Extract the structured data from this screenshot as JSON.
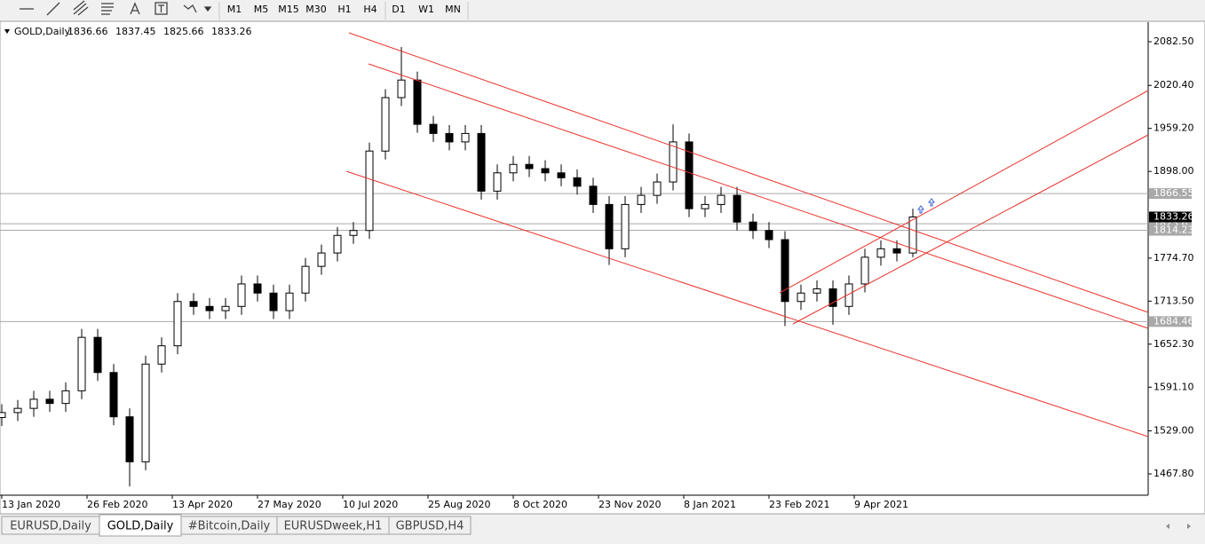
{
  "toolbar": {
    "timeframes": [
      "M1",
      "M5",
      "M15",
      "M30",
      "H1",
      "H4",
      "D1",
      "W1",
      "MN"
    ]
  },
  "chart_data": {
    "type": "candlestick",
    "symbol": "GOLD,Daily",
    "ohlc": [
      1836.66,
      1837.45,
      1825.66,
      1833.26
    ],
    "x": [
      0,
      6,
      12,
      18,
      24,
      30,
      36,
      42,
      48,
      54,
      60,
      66,
      72,
      78,
      84,
      90,
      96,
      102,
      108,
      114,
      120,
      126,
      132,
      138,
      144,
      150,
      156,
      162,
      168,
      174,
      180,
      186,
      192,
      198,
      204,
      210,
      216,
      222,
      228,
      234,
      240,
      246,
      252,
      258,
      264,
      270,
      276,
      282,
      288,
      294,
      300,
      306,
      312,
      318,
      324,
      330,
      336,
      342
    ],
    "open": [
      1548,
      1555,
      1561,
      1574,
      1568,
      1586,
      1662,
      1612,
      1549,
      1485,
      1624,
      1650,
      1713,
      1706,
      1700,
      1706,
      1738,
      1725,
      1700,
      1725,
      1763,
      1782,
      1807,
      1814,
      1927,
      2003,
      2028,
      1965,
      1952,
      1940,
      1952,
      1870,
      1896,
      1908,
      1902,
      1896,
      1889,
      1877,
      1851,
      1788,
      1851,
      1864,
      1883,
      1940,
      1845,
      1851,
      1864,
      1826,
      1814,
      1801,
      1713,
      1725,
      1731,
      1706,
      1738,
      1776,
      1788,
      1782
    ],
    "high": [
      1567,
      1573,
      1586,
      1586,
      1598,
      1674,
      1674,
      1624,
      1561,
      1636,
      1662,
      1725,
      1725,
      1718,
      1718,
      1750,
      1750,
      1737,
      1737,
      1775,
      1794,
      1819,
      1826,
      1939,
      2015,
      2075,
      2040,
      1977,
      1964,
      1964,
      1964,
      1908,
      1920,
      1920,
      1914,
      1908,
      1901,
      1889,
      1863,
      1863,
      1876,
      1895,
      1965,
      1952,
      1863,
      1876,
      1876,
      1838,
      1826,
      1813,
      1737,
      1743,
      1743,
      1750,
      1788,
      1800,
      1800,
      1845
    ],
    "low": [
      1536,
      1543,
      1549,
      1556,
      1556,
      1574,
      1600,
      1537,
      1450,
      1473,
      1612,
      1638,
      1694,
      1688,
      1688,
      1694,
      1713,
      1688,
      1688,
      1713,
      1751,
      1770,
      1795,
      1802,
      1915,
      1991,
      1953,
      1940,
      1928,
      1928,
      1858,
      1858,
      1884,
      1890,
      1884,
      1877,
      1865,
      1839,
      1765,
      1776,
      1839,
      1852,
      1871,
      1833,
      1833,
      1839,
      1814,
      1802,
      1789,
      1678,
      1701,
      1713,
      1680,
      1694,
      1726,
      1764,
      1770,
      1776
    ],
    "close": [
      1555,
      1561,
      1574,
      1568,
      1586,
      1662,
      1612,
      1549,
      1485,
      1624,
      1650,
      1713,
      1706,
      1700,
      1706,
      1738,
      1725,
      1700,
      1725,
      1763,
      1782,
      1807,
      1814,
      1927,
      2003,
      2028,
      1965,
      1952,
      1940,
      1952,
      1870,
      1896,
      1908,
      1902,
      1896,
      1889,
      1877,
      1851,
      1788,
      1851,
      1864,
      1883,
      1940,
      1845,
      1851,
      1864,
      1826,
      1814,
      1801,
      1713,
      1725,
      1731,
      1706,
      1738,
      1776,
      1788,
      1782,
      1833.26
    ],
    "xlim": [
      -0.67,
      430.33
    ],
    "xticks": [
      {
        "value": 0,
        "label": "13 Jan 2020"
      },
      {
        "value": 32,
        "label": "26 Feb 2020"
      },
      {
        "value": 64,
        "label": "13 Apr 2020"
      },
      {
        "value": 96,
        "label": "27 May 2020"
      },
      {
        "value": 128,
        "label": "10 Jul 2020"
      },
      {
        "value": 160,
        "label": "25 Aug 2020"
      },
      {
        "value": 192,
        "label": "8 Oct 2020"
      },
      {
        "value": 224,
        "label": "23 Nov 2020"
      },
      {
        "value": 256,
        "label": "8 Jan 2021"
      },
      {
        "value": 288,
        "label": "23 Feb 2021"
      },
      {
        "value": 320,
        "label": "9 Apr 2021"
      }
    ],
    "ylim": [
      1437.5,
      2110.3
    ],
    "yticks": [
      {
        "value": 2082.5,
        "label": "2082.50"
      },
      {
        "value": 2020.4,
        "label": "2020.40"
      },
      {
        "value": 1959.2,
        "label": "1959.20"
      },
      {
        "value": 1898,
        "label": "1898.00"
      },
      {
        "value": 1774.7,
        "label": "1774.70"
      },
      {
        "value": 1713.5,
        "label": "1713.50"
      },
      {
        "value": 1652.3,
        "label": "1652.30"
      },
      {
        "value": 1591.1,
        "label": "1591.10"
      },
      {
        "value": 1529,
        "label": "1529.00"
      },
      {
        "value": 1467.8,
        "label": "1467.80"
      }
    ],
    "levels": [
      1866.55,
      1823.65,
      1814.23,
      1684.46
    ],
    "bid": 1833.26
  },
  "tabs": [
    "EURUSD,Daily",
    "GOLD,Daily",
    "#Bitcoin,Daily",
    "EURUSDweek,H1",
    "GBPUSD,H4"
  ],
  "active_tab": 1
}
